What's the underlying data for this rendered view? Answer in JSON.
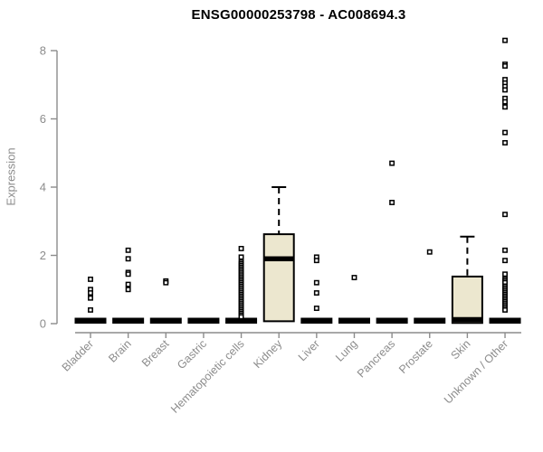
{
  "title": "ENSG00000253798 - AC008694.3",
  "colors": {
    "box_fill": "#ECE7CF",
    "box_stroke": "#000000",
    "median": "#000000",
    "whisker": "#000000",
    "outlier_stroke": "#000000",
    "outlier_fill": "#FFFFFF",
    "axis": "#8c8c8c",
    "tick_label": "#8c8c8c",
    "title_text": "#000000"
  },
  "chart_data": {
    "type": "boxplot",
    "title": "ENSG00000253798 - AC008694.3",
    "xlabel": "",
    "ylabel": "Expression",
    "ylim": [
      0,
      8
    ],
    "yticks": [
      0,
      2,
      4,
      6,
      8
    ],
    "grid": false,
    "legend": false,
    "categories": [
      "Bladder",
      "Brain",
      "Breast",
      "Gastric",
      "Hematopoietic cells",
      "Kidney",
      "Liver",
      "Lung",
      "Pancreas",
      "Prostate",
      "Skin",
      "Unknown / Other"
    ],
    "boxes": [
      {
        "category": "Bladder",
        "q1": 0,
        "median": 0,
        "q3": 0,
        "whisker_low": 0,
        "whisker_high": 0,
        "outliers": [
          1.3,
          1.0,
          0.9,
          0.75,
          0.4
        ]
      },
      {
        "category": "Brain",
        "q1": 0,
        "median": 0,
        "q3": 0,
        "whisker_low": 0,
        "whisker_high": 0,
        "outliers": [
          2.15,
          1.9,
          1.5,
          1.45,
          1.15,
          1.0
        ]
      },
      {
        "category": "Breast",
        "q1": 0,
        "median": 0,
        "q3": 0,
        "whisker_low": 0,
        "whisker_high": 0,
        "outliers": [
          1.25,
          1.2
        ]
      },
      {
        "category": "Gastric",
        "q1": 0,
        "median": 0,
        "q3": 0,
        "whisker_low": 0,
        "whisker_high": 0,
        "outliers": []
      },
      {
        "category": "Hematopoietic cells",
        "q1": 0,
        "median": 0,
        "q3": 0,
        "whisker_low": 0,
        "whisker_high": 0,
        "outliers": [
          2.2,
          1.95,
          1.8,
          1.75,
          1.7,
          1.65,
          1.6,
          1.55,
          1.5,
          1.45,
          1.4,
          1.35,
          1.3,
          1.25,
          1.2,
          1.15,
          1.1,
          1.05,
          1.0,
          0.95,
          0.9,
          0.85,
          0.8,
          0.75,
          0.7,
          0.65,
          0.6,
          0.55,
          0.5,
          0.45,
          0.4,
          0.35,
          0.3,
          0.25,
          0.2
        ]
      },
      {
        "category": "Kidney",
        "q1": 0.07,
        "median": 1.9,
        "q3": 2.62,
        "whisker_low": 0.07,
        "whisker_high": 4.0,
        "outliers": []
      },
      {
        "category": "Liver",
        "q1": 0,
        "median": 0,
        "q3": 0,
        "whisker_low": 0,
        "whisker_high": 0,
        "outliers": [
          1.95,
          1.85,
          1.2,
          0.9,
          0.45
        ]
      },
      {
        "category": "Lung",
        "q1": 0,
        "median": 0,
        "q3": 0,
        "whisker_low": 0,
        "whisker_high": 0,
        "outliers": [
          1.35
        ]
      },
      {
        "category": "Pancreas",
        "q1": 0,
        "median": 0,
        "q3": 0,
        "whisker_low": 0,
        "whisker_high": 0,
        "outliers": [
          4.7,
          3.55
        ]
      },
      {
        "category": "Prostate",
        "q1": 0,
        "median": 0,
        "q3": 0,
        "whisker_low": 0,
        "whisker_high": 0,
        "outliers": [
          2.1
        ]
      },
      {
        "category": "Skin",
        "q1": 0.02,
        "median": 0.02,
        "q3": 1.38,
        "whisker_low": 0.02,
        "whisker_high": 2.55,
        "outliers": []
      },
      {
        "category": "Unknown / Other",
        "q1": 0,
        "median": 0,
        "q3": 0,
        "whisker_low": 0,
        "whisker_high": 0,
        "outliers": [
          8.3,
          7.6,
          7.55,
          7.15,
          7.05,
          6.95,
          6.85,
          6.6,
          6.5,
          6.35,
          5.6,
          5.3,
          3.2,
          2.15,
          1.85,
          1.45,
          1.3,
          1.25,
          1.2,
          1.1,
          1.05,
          1.0,
          0.95,
          0.9,
          0.85,
          0.8,
          0.75,
          0.7,
          0.65,
          0.6,
          0.55,
          0.5,
          0.45,
          0.4
        ]
      }
    ]
  }
}
